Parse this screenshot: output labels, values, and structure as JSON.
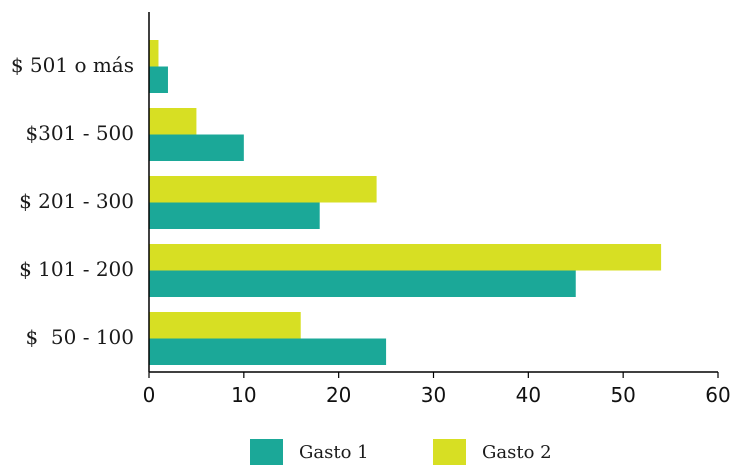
{
  "chart_data": {
    "type": "bar",
    "orientation": "horizontal",
    "categories": [
      "$  50 - 100",
      "$ 101 - 200",
      "$ 201 - 300",
      "$301 - 500",
      "$ 501 o más"
    ],
    "series": [
      {
        "name": "Gasto 1",
        "color": "#1ba898",
        "values": [
          25,
          45,
          18,
          10,
          2
        ]
      },
      {
        "name": "Gasto 2",
        "color": "#d7df23",
        "values": [
          16,
          54,
          24,
          5,
          1
        ]
      }
    ],
    "xlim": [
      0,
      60
    ],
    "xticks": [
      0,
      10,
      20,
      30,
      40,
      50,
      60
    ],
    "grid": false,
    "legend_position": "bottom-center"
  }
}
